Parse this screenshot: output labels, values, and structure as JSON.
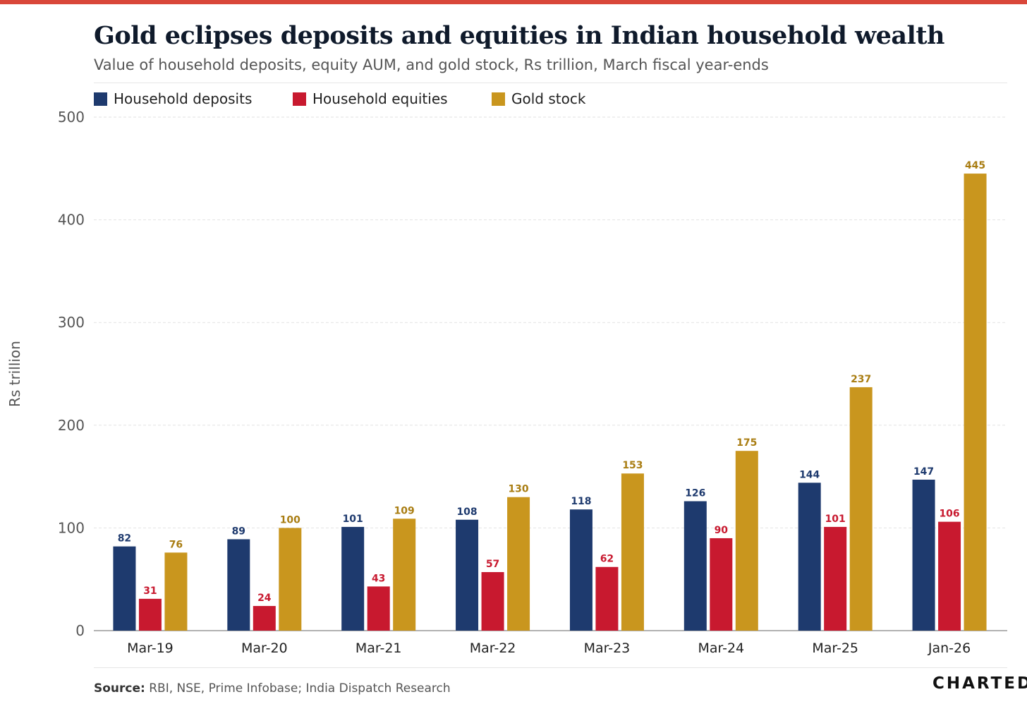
{
  "header": {
    "title": "Gold eclipses deposits and equities in Indian household wealth",
    "subtitle": "Value of household deposits, equity AUM, and gold stock, Rs trillion, March fiscal year-ends"
  },
  "footer": {
    "source_label": "Source:",
    "source_text": " RBI, NSE, Prime Infobase; India Dispatch Research",
    "logo": "CHARTED"
  },
  "chart_data": {
    "type": "bar",
    "title": "Gold eclipses deposits and equities in Indian household wealth",
    "xlabel": "",
    "ylabel": "Rs trillion",
    "ylim": [
      0,
      500
    ],
    "yticks": [
      0,
      100,
      200,
      300,
      400,
      500
    ],
    "grid": true,
    "legend": "top-left",
    "categories": [
      "Mar-19",
      "Mar-20",
      "Mar-21",
      "Mar-22",
      "Mar-23",
      "Mar-24",
      "Mar-25",
      "Jan-26"
    ],
    "series": [
      {
        "name": "Household deposits",
        "color": "#1e3a6e",
        "label_color": "#1e3a6e",
        "values": [
          82,
          89,
          101,
          108,
          118,
          126,
          144,
          147
        ]
      },
      {
        "name": "Household equities",
        "color": "#c8192f",
        "label_color": "#c8192f",
        "values": [
          31,
          24,
          43,
          57,
          62,
          90,
          101,
          106
        ]
      },
      {
        "name": "Gold stock",
        "color": "#c9961e",
        "label_color": "#a97d12",
        "values": [
          76,
          100,
          109,
          130,
          153,
          175,
          237,
          445
        ]
      }
    ]
  }
}
